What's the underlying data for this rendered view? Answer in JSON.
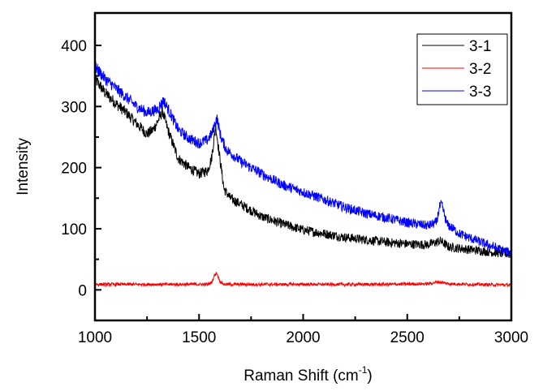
{
  "chart_data": {
    "type": "line",
    "title": "",
    "xlabel": "Raman Shift (cm",
    "xlabel_sup": "-1",
    "xlabel_close": ")",
    "ylabel": "Intensity",
    "xlim": [
      1000,
      3000
    ],
    "ylim": [
      -50,
      453
    ],
    "grid": false,
    "legend_position": "top-right",
    "x_ticks": [
      1000,
      1500,
      2000,
      2500,
      3000
    ],
    "x_tick_labels": [
      "1000",
      "1500",
      "2000",
      "2500",
      "3000"
    ],
    "x_minor_ticks": [
      1250,
      1750,
      2250,
      2750
    ],
    "y_ticks": [
      0,
      100,
      200,
      300,
      400
    ],
    "y_tick_labels": [
      "0",
      "100",
      "200",
      "300",
      "400"
    ],
    "y_minor_ticks": [
      50,
      150,
      250,
      350
    ],
    "noise_amplitude": {
      "3-1": 14,
      "3-2": 5,
      "3-3": 14
    },
    "series": [
      {
        "name": "3-1",
        "color": "#000000",
        "x": [
          1000,
          1050,
          1100,
          1150,
          1200,
          1250,
          1280,
          1300,
          1325,
          1350,
          1400,
          1450,
          1500,
          1540,
          1560,
          1580,
          1600,
          1620,
          1650,
          1700,
          1800,
          1900,
          2000,
          2100,
          2200,
          2300,
          2400,
          2500,
          2600,
          2640,
          2660,
          2700,
          2800,
          2900,
          3000
        ],
        "y": [
          345,
          322,
          305,
          290,
          272,
          255,
          262,
          275,
          292,
          262,
          215,
          200,
          190,
          195,
          215,
          268,
          215,
          165,
          150,
          140,
          120,
          108,
          98,
          92,
          86,
          82,
          78,
          75,
          74,
          78,
          80,
          70,
          66,
          62,
          58
        ]
      },
      {
        "name": "3-2",
        "color": "#ff0000",
        "x": [
          1000,
          1200,
          1400,
          1540,
          1560,
          1575,
          1585,
          1600,
          1620,
          1800,
          2000,
          2200,
          2400,
          2600,
          2650,
          2700,
          2800,
          3000
        ],
        "y": [
          9,
          9,
          9,
          9,
          12,
          24,
          28,
          14,
          9,
          9,
          9,
          9,
          9,
          10,
          13,
          10,
          9,
          8
        ]
      },
      {
        "name": "3-3",
        "color": "#0000ff",
        "x": [
          1000,
          1050,
          1100,
          1150,
          1200,
          1250,
          1300,
          1330,
          1360,
          1400,
          1450,
          1500,
          1540,
          1565,
          1585,
          1605,
          1630,
          1700,
          1800,
          1900,
          2000,
          2100,
          2200,
          2300,
          2400,
          2500,
          2600,
          2640,
          2655,
          2665,
          2690,
          2750,
          2800,
          2900,
          3000
        ],
        "y": [
          365,
          345,
          330,
          315,
          300,
          290,
          295,
          310,
          290,
          262,
          248,
          240,
          245,
          258,
          282,
          250,
          230,
          210,
          190,
          172,
          160,
          148,
          135,
          125,
          118,
          110,
          105,
          110,
          135,
          140,
          108,
          92,
          85,
          72,
          60
        ]
      }
    ]
  }
}
